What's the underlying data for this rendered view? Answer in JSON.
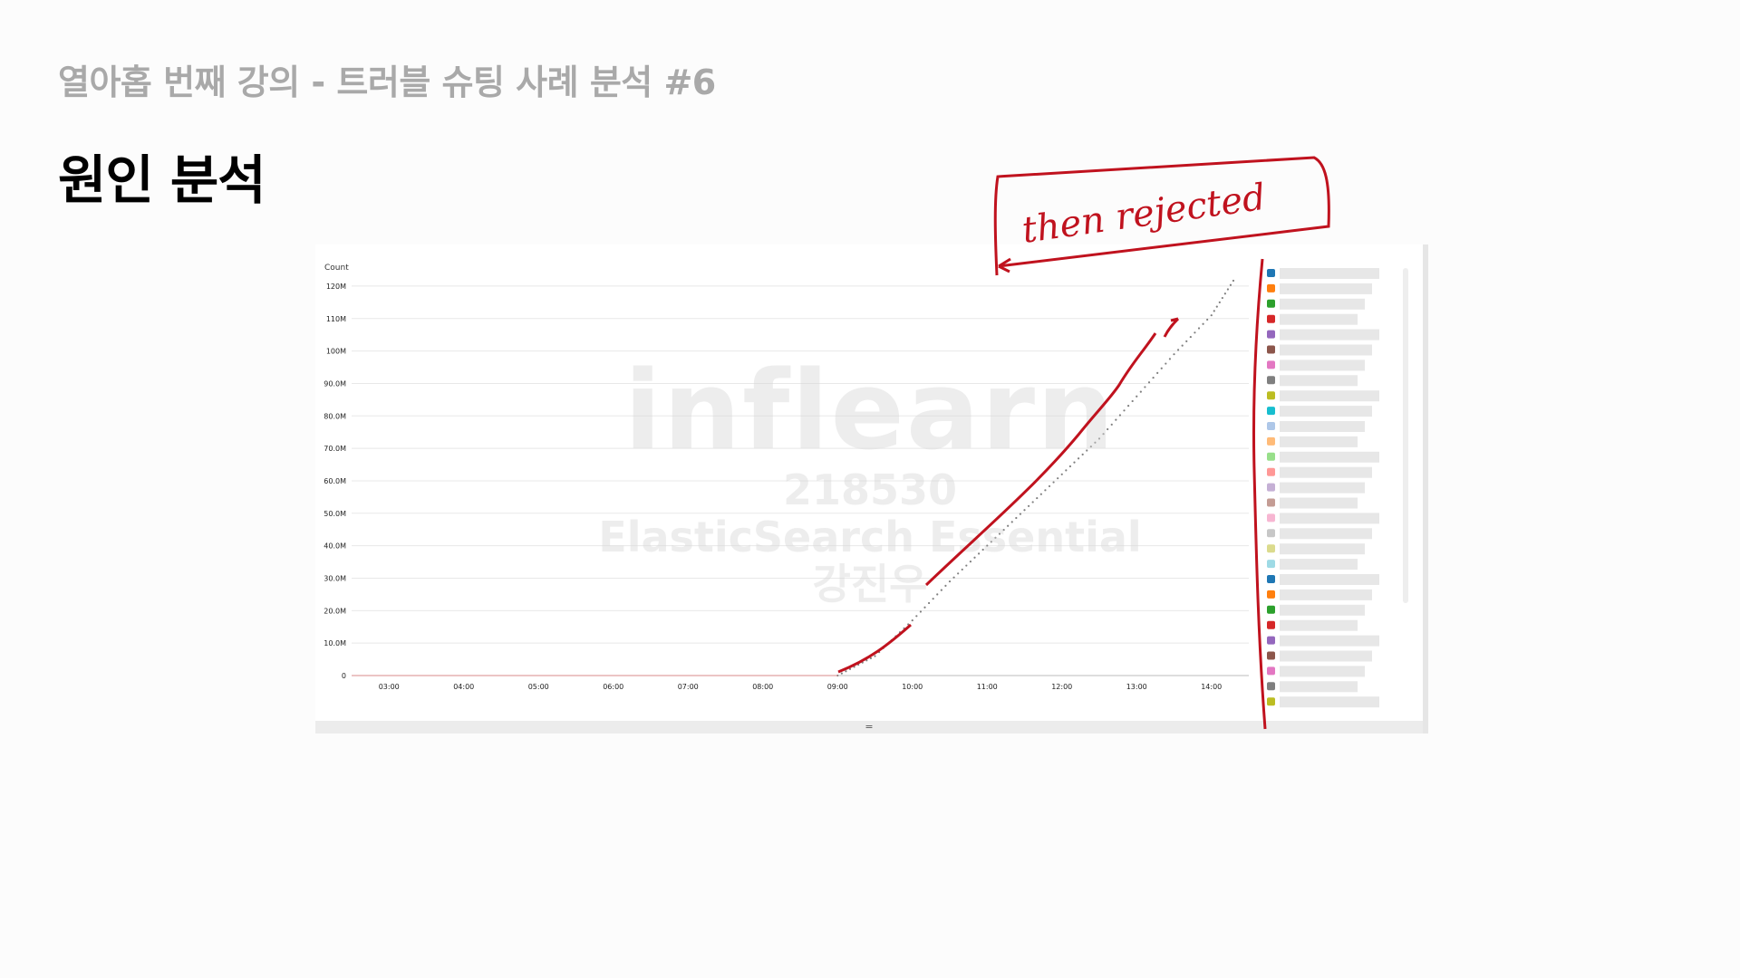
{
  "slide": {
    "subtitle": "열아홉 번째 강의 - 트러블 슈팅 사례 분석 #6",
    "title": "원인 분석"
  },
  "annotation": {
    "text": "then rejected",
    "color": "#c0121e"
  },
  "watermark": {
    "logo": "inflearn",
    "lines": [
      "218530",
      "ElasticSearch Essential",
      "강진우"
    ]
  },
  "chart_data": {
    "type": "line",
    "ylabel": "Count",
    "ylim": [
      0,
      125
    ],
    "y_ticks": [
      {
        "value": 0,
        "label": "0"
      },
      {
        "value": 10,
        "label": "10.0M"
      },
      {
        "value": 20,
        "label": "20.0M"
      },
      {
        "value": 30,
        "label": "30.0M"
      },
      {
        "value": 40,
        "label": "40.0M"
      },
      {
        "value": 50,
        "label": "50.0M"
      },
      {
        "value": 60,
        "label": "60.0M"
      },
      {
        "value": 70,
        "label": "70.0M"
      },
      {
        "value": 80,
        "label": "80.0M"
      },
      {
        "value": 90,
        "label": "90.0M"
      },
      {
        "value": 100,
        "label": "100M"
      },
      {
        "value": 110,
        "label": "110M"
      },
      {
        "value": 120,
        "label": "120M"
      }
    ],
    "x_ticks": [
      "03:00",
      "04:00",
      "05:00",
      "06:00",
      "07:00",
      "08:00",
      "09:00",
      "10:00",
      "11:00",
      "12:00",
      "13:00",
      "14:00"
    ],
    "xlim_hours": [
      2.5,
      14.5
    ],
    "grid": true,
    "series": [
      {
        "color": "#7f7f7f",
        "style": "dotted",
        "x_hours": [
          9.0,
          9.5,
          10.0,
          10.5,
          11.0,
          11.5,
          12.0,
          12.5,
          13.0,
          13.5,
          14.0,
          14.33
        ],
        "values": [
          0,
          6,
          17,
          29,
          40,
          51,
          62,
          73,
          86,
          99,
          111,
          123
        ]
      }
    ],
    "legend": {
      "placement": "right",
      "colors": [
        "#1f77b4",
        "#ff7f0e",
        "#2ca02c",
        "#d62728",
        "#9467bd",
        "#8c564b",
        "#e377c2",
        "#7f7f7f",
        "#bcbd22",
        "#17becf",
        "#aec7e8",
        "#ffbb78",
        "#98df8a",
        "#ff9896",
        "#c5b0d5",
        "#c49c94",
        "#f7b6d2",
        "#c7c7c7",
        "#dbdb8d",
        "#9edae5",
        "#1f77b4",
        "#ff7f0e",
        "#2ca02c",
        "#d62728",
        "#9467bd",
        "#8c564b",
        "#e377c2",
        "#7f7f7f",
        "#bcbd22"
      ]
    }
  }
}
